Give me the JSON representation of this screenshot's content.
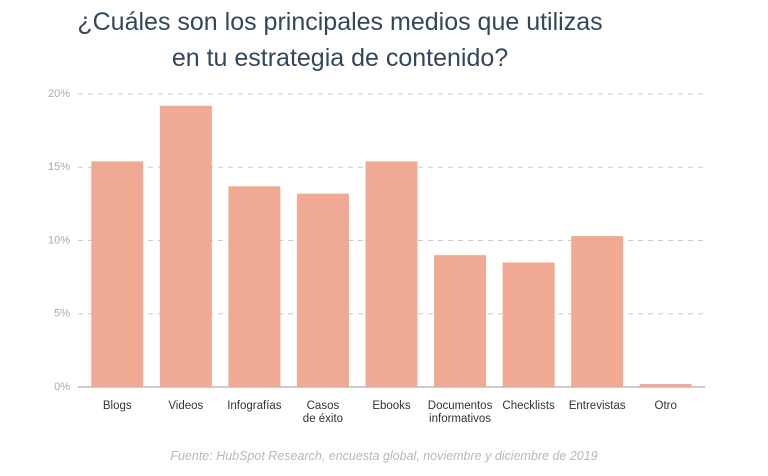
{
  "chart_data": {
    "type": "bar",
    "title": "¿Cuáles son los principales medios que utilizas\nen tu estrategia de contenido?",
    "categories": [
      "Blogs",
      "Videos",
      "Infografías",
      "Casos\nde éxito",
      "Ebooks",
      "Documentos\ninformativos",
      "Checklists",
      "Entrevistas",
      "Otro"
    ],
    "values": [
      15.4,
      19.2,
      13.7,
      13.2,
      15.4,
      9.0,
      8.5,
      10.3,
      0.2
    ],
    "color": "#f0aa93",
    "ylim": [
      0,
      20
    ],
    "yticks": [
      {
        "value": 0,
        "label": "0%"
      },
      {
        "value": 5,
        "label": "5%"
      },
      {
        "value": 10,
        "label": "10%"
      },
      {
        "value": 15,
        "label": "15%"
      },
      {
        "value": 20,
        "label": "20%"
      }
    ],
    "grid": true,
    "source": "Fuente: HubSpot Research, encuesta global, noviembre y diciembre de 2019"
  }
}
